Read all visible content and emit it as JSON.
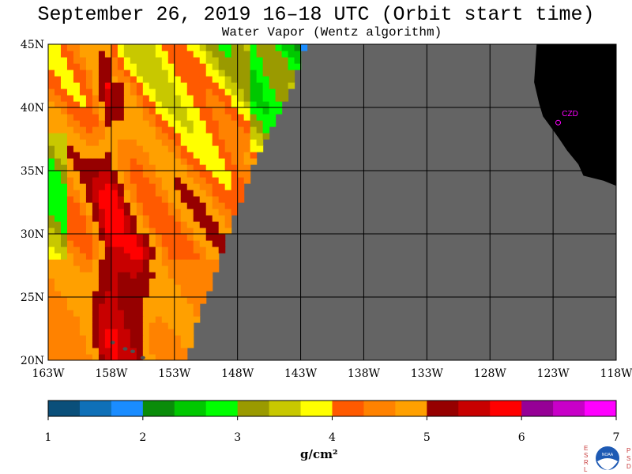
{
  "header": {
    "title": "September 26, 2019  16–18 UTC  (Orbit start time)",
    "subtitle": "Water Vapor (Wentz algorithm)"
  },
  "chart_data": {
    "type": "heatmap",
    "title": "September 26, 2019  16–18 UTC  (Orbit start time)",
    "subtitle": "Water Vapor (Wentz algorithm)",
    "x_axis": {
      "range": [
        -163,
        -118
      ],
      "ticks": [
        -163,
        -158,
        -153,
        -148,
        -143,
        -138,
        -133,
        -128,
        -123,
        -118
      ],
      "tick_labels": [
        "163W",
        "158W",
        "153W",
        "148W",
        "143W",
        "138W",
        "133W",
        "128W",
        "123W",
        "118W"
      ]
    },
    "y_axis": {
      "range": [
        20,
        45
      ],
      "ticks": [
        20,
        25,
        30,
        35,
        40,
        45
      ],
      "tick_labels": [
        "20N",
        "25N",
        "30N",
        "35N",
        "40N",
        "45N"
      ]
    },
    "grid": true,
    "colorbar": {
      "min": 1,
      "max": 7,
      "tick_labels": [
        "1",
        "2",
        "3",
        "4",
        "5",
        "6",
        "7"
      ],
      "label": "g/cm²",
      "colors": [
        "#0a4f7a",
        "#0f70b8",
        "#1a8cff",
        "#0a8c0a",
        "#00c800",
        "#00ff00",
        "#9a9a00",
        "#c8c800",
        "#ffff00",
        "#ff5a00",
        "#ff8200",
        "#ffa000",
        "#960000",
        "#c80000",
        "#ff0000",
        "#960096",
        "#c800c8",
        "#ff00ff"
      ]
    },
    "no_data_color": "#646464",
    "land_color": "#000000",
    "station_label": "CZD",
    "swath_edge": [
      [
        -142.5,
        45
      ],
      [
        -144,
        41
      ],
      [
        -146.5,
        36
      ],
      [
        -148,
        32
      ],
      [
        -149.5,
        28
      ],
      [
        -150.5,
        25
      ],
      [
        -151.5,
        22.5
      ],
      [
        -152,
        20
      ]
    ],
    "fields": [
      {
        "region": "west-band",
        "lon": [
          -163,
          -161
        ],
        "lat": [
          20,
          45
        ],
        "value": 4.8
      },
      {
        "region": "core-maximum",
        "lon": [
          -159.5,
          -156.5
        ],
        "lat": [
          20,
          42
        ],
        "value": 5.3
      },
      {
        "region": "mid-band",
        "lon": [
          -156,
          -152
        ],
        "lat": [
          24,
          38
        ],
        "value": 4.5
      },
      {
        "region": "north-moist",
        "lon": [
          -157,
          -150
        ],
        "lat": [
          36,
          45
        ],
        "value": 3.4
      },
      {
        "region": "dry-pocket",
        "lon": [
          -145,
          -143
        ],
        "lat": [
          38,
          41
        ],
        "value": 2.9
      },
      {
        "region": "northeast-dry",
        "lon": [
          -150,
          -144
        ],
        "lat": [
          40,
          45
        ],
        "value": 3.2
      }
    ],
    "legend": "bottom colorbar"
  },
  "logo": {
    "left_text": [
      "E",
      "S",
      "R",
      "L"
    ],
    "right_text": [
      "P",
      "S",
      "D"
    ],
    "center": "NOAA"
  }
}
